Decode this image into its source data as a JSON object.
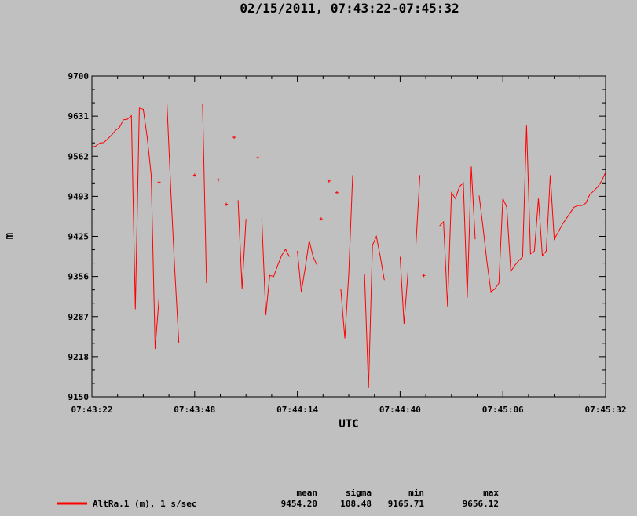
{
  "chart_data": {
    "type": "line",
    "title": "02/15/2011, 07:43:22-07:45:32",
    "xlabel": "UTC",
    "ylabel": "m",
    "xlim": [
      "07:43:22",
      "07:45:32"
    ],
    "ylim": [
      9150,
      9700
    ],
    "x_ticks": [
      "07:43:22",
      "07:43:48",
      "07:44:14",
      "07:44:40",
      "07:45:06",
      "07:45:32"
    ],
    "y_ticks": [
      "9700",
      "9631",
      "9562",
      "9493",
      "9425",
      "9356",
      "9287",
      "9218",
      "9150"
    ],
    "grid": false,
    "series": [
      {
        "name": "AltRa.1 (m), 1 s/sec",
        "color": "#ff0000",
        "segments": [
          [
            [
              "07:43:22",
              9578
            ],
            [
              "07:43:23",
              9580
            ],
            [
              "07:43:24",
              9585
            ],
            [
              "07:43:25",
              9586
            ],
            [
              "07:43:26",
              9592
            ],
            [
              "07:43:27",
              9599
            ],
            [
              "07:43:28",
              9607
            ],
            [
              "07:43:29",
              9612
            ],
            [
              "07:43:30",
              9625
            ],
            [
              "07:43:31",
              9626
            ],
            [
              "07:43:32",
              9632
            ],
            [
              "07:43:33",
              9300
            ],
            [
              "07:43:34",
              9645
            ],
            [
              "07:43:35",
              9643
            ],
            [
              "07:43:36",
              9595
            ],
            [
              "07:43:37",
              9530
            ],
            [
              "07:43:38",
              9232
            ],
            [
              "07:43:39",
              9320
            ]
          ],
          [
            [
              "07:43:41",
              9652
            ],
            [
              "07:43:42",
              9500
            ],
            [
              "07:43:43",
              9365
            ],
            [
              "07:43:44",
              9242
            ]
          ],
          [
            [
              "07:43:50",
              9653
            ],
            [
              "07:43:51",
              9345
            ]
          ],
          [
            [
              "07:43:59",
              9487
            ],
            [
              "07:44:00",
              9335
            ],
            [
              "07:44:01",
              9455
            ]
          ],
          [
            [
              "07:44:05",
              9455
            ],
            [
              "07:44:06",
              9290
            ],
            [
              "07:44:07",
              9358
            ],
            [
              "07:44:08",
              9356
            ],
            [
              "07:44:09",
              9375
            ],
            [
              "07:44:10",
              9392
            ],
            [
              "07:44:11",
              9403
            ],
            [
              "07:44:12",
              9390
            ]
          ],
          [
            [
              "07:44:14",
              9400
            ],
            [
              "07:44:15",
              9330
            ],
            [
              "07:44:16",
              9372
            ],
            [
              "07:44:17",
              9418
            ],
            [
              "07:44:18",
              9390
            ],
            [
              "07:44:19",
              9375
            ]
          ],
          [
            [
              "07:44:25",
              9335
            ],
            [
              "07:44:26",
              9250
            ],
            [
              "07:44:27",
              9360
            ],
            [
              "07:44:28",
              9530
            ]
          ],
          [
            [
              "07:44:31",
              9360
            ],
            [
              "07:44:32",
              9165
            ],
            [
              "07:44:33",
              9410
            ],
            [
              "07:44:34",
              9425
            ],
            [
              "07:44:35",
              9390
            ],
            [
              "07:44:36",
              9350
            ]
          ],
          [
            [
              "07:44:40",
              9390
            ],
            [
              "07:44:41",
              9275
            ],
            [
              "07:44:42",
              9365
            ]
          ],
          [
            [
              "07:44:44",
              9410
            ],
            [
              "07:44:45",
              9530
            ]
          ],
          [
            [
              "07:44:50",
              9443
            ],
            [
              "07:44:51",
              9450
            ],
            [
              "07:44:52",
              9305
            ],
            [
              "07:44:53",
              9500
            ],
            [
              "07:44:54",
              9490
            ],
            [
              "07:44:55",
              9510
            ],
            [
              "07:44:56",
              9517
            ],
            [
              "07:44:57",
              9320
            ],
            [
              "07:44:58",
              9545
            ],
            [
              "07:44:59",
              9420
            ]
          ],
          [
            [
              "07:45:00",
              9495
            ],
            [
              "07:45:01",
              9440
            ],
            [
              "07:45:02",
              9380
            ],
            [
              "07:45:03",
              9330
            ],
            [
              "07:45:04",
              9335
            ],
            [
              "07:45:05",
              9345
            ],
            [
              "07:45:06",
              9490
            ],
            [
              "07:45:07",
              9475
            ],
            [
              "07:45:08",
              9365
            ],
            [
              "07:45:09",
              9375
            ],
            [
              "07:45:10",
              9383
            ],
            [
              "07:45:11",
              9390
            ],
            [
              "07:45:12",
              9615
            ],
            [
              "07:45:13",
              9395
            ],
            [
              "07:45:14",
              9400
            ],
            [
              "07:45:15",
              9490
            ],
            [
              "07:45:16",
              9392
            ],
            [
              "07:45:17",
              9400
            ],
            [
              "07:45:18",
              9530
            ],
            [
              "07:45:19",
              9420
            ],
            [
              "07:45:20",
              9432
            ],
            [
              "07:45:21",
              9445
            ],
            [
              "07:45:22",
              9455
            ],
            [
              "07:45:23",
              9465
            ],
            [
              "07:45:24",
              9475
            ],
            [
              "07:45:25",
              9478
            ],
            [
              "07:45:26",
              9478
            ],
            [
              "07:45:27",
              9482
            ],
            [
              "07:45:28",
              9497
            ],
            [
              "07:45:29",
              9503
            ],
            [
              "07:45:30",
              9510
            ],
            [
              "07:45:31",
              9520
            ],
            [
              "07:45:32",
              9535
            ]
          ]
        ],
        "points": [
          [
            "07:43:39",
            9518
          ],
          [
            "07:43:48",
            9530
          ],
          [
            "07:43:54",
            9522
          ],
          [
            "07:43:56",
            9480
          ],
          [
            "07:43:58",
            9595
          ],
          [
            "07:44:04",
            9560
          ],
          [
            "07:44:20",
            9455
          ],
          [
            "07:44:22",
            9520
          ],
          [
            "07:44:24",
            9500
          ],
          [
            "07:44:46",
            9358
          ]
        ]
      }
    ],
    "stats": {
      "headers": [
        "mean",
        "sigma",
        "min",
        "max"
      ],
      "values": [
        "9454.20",
        "108.48",
        "9165.71",
        "9656.12"
      ]
    },
    "legend": {
      "placement": "bottom-left",
      "label": "AltRa.1 (m), 1 s/sec",
      "color": "#ff0000"
    }
  }
}
